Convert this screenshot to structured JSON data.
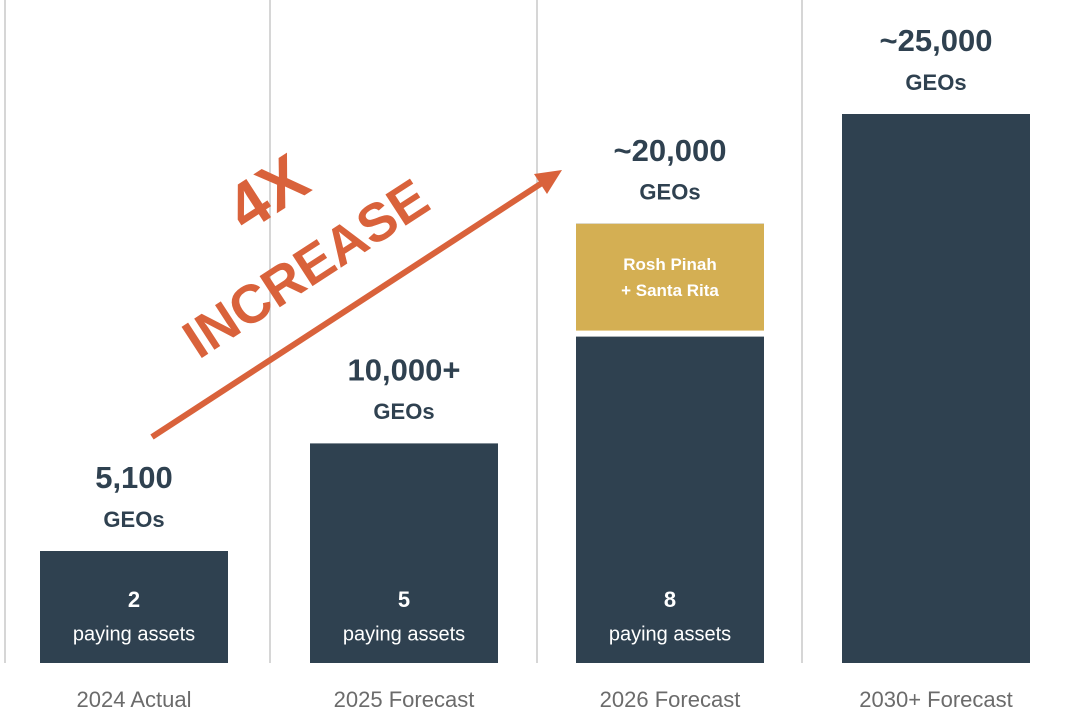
{
  "chart_data": {
    "type": "bar",
    "categories": [
      "2024 Actual",
      "2025 Forecast",
      "2026 Forecast",
      "2030+ Forecast"
    ],
    "values": [
      5100,
      10000,
      20000,
      25000
    ],
    "value_labels": [
      "5,100",
      "10,000+",
      "~20,000",
      "~25,000"
    ],
    "unit": "GEOs",
    "assets": [
      2,
      5,
      8,
      null
    ],
    "assets_label": "paying assets",
    "highlight": {
      "category": 2,
      "value": 5000,
      "label": [
        "Rosh Pinah",
        "+ Santa Rita"
      ],
      "color": "#d4af53"
    },
    "annotation": {
      "multiplier": "4X",
      "text": "INCREASE",
      "color": "#d9623b"
    },
    "color": "#2f4150",
    "ylim": [
      0,
      25000
    ]
  }
}
